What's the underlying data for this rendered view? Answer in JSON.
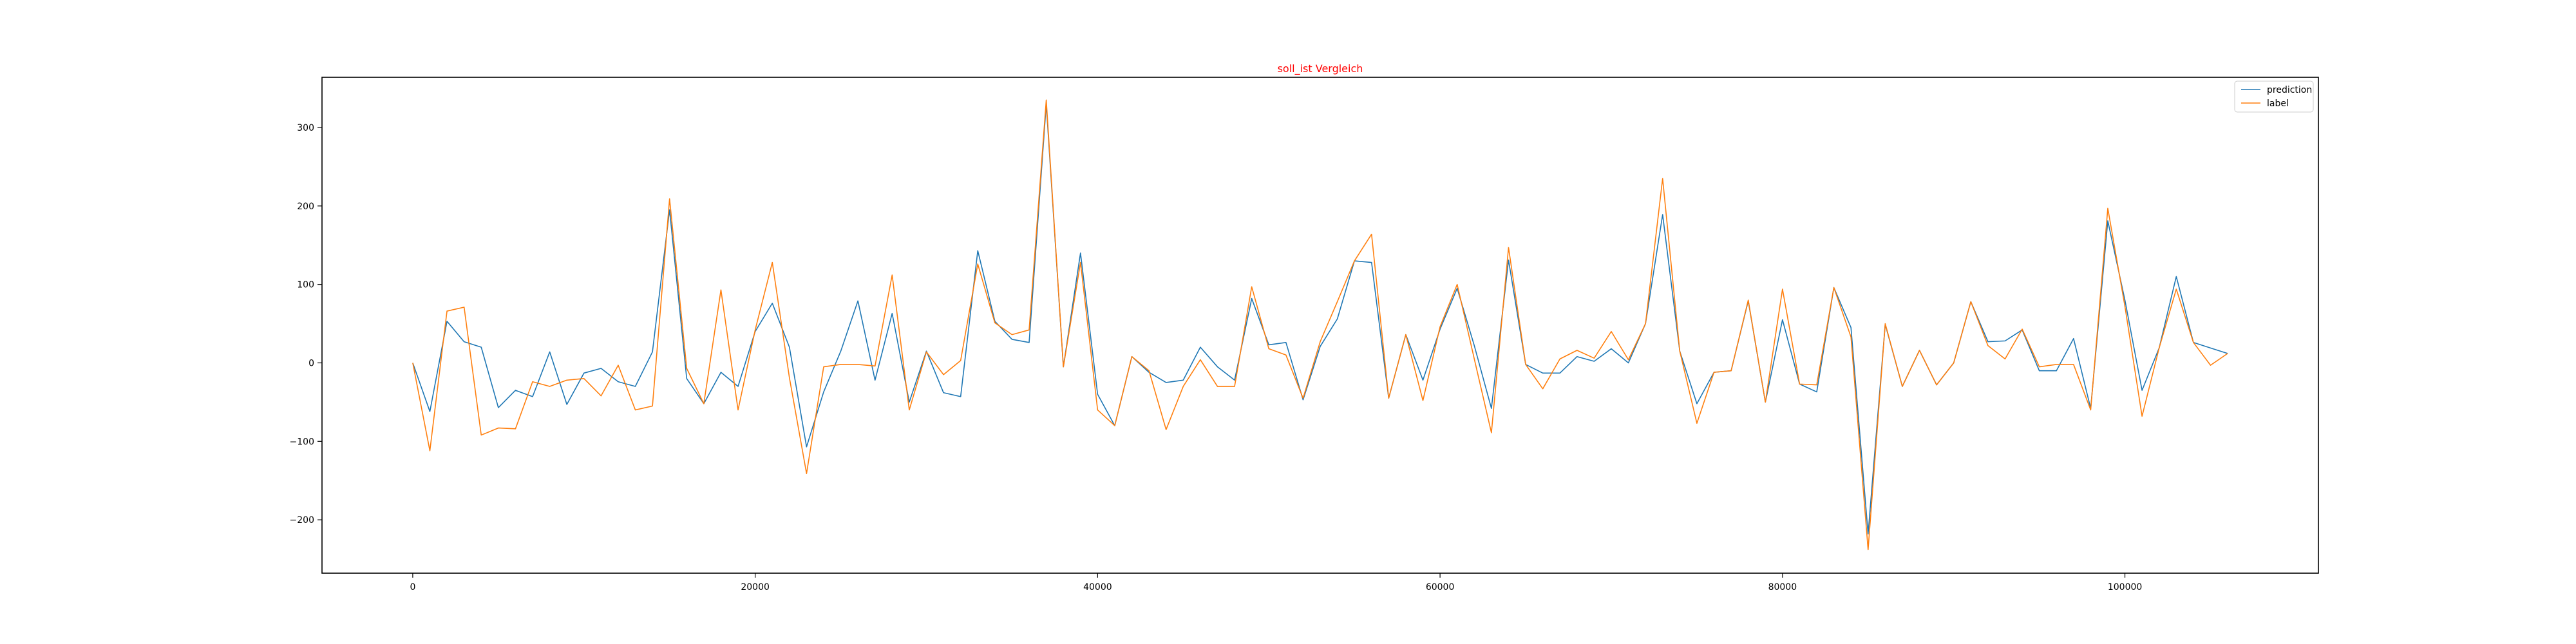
{
  "chart_data": {
    "type": "line",
    "title": "soll_ist Vergleich",
    "title_color": "#ff0000",
    "xlabel": "",
    "ylabel": "",
    "xlim": [
      -5300,
      111300
    ],
    "ylim": [
      -268,
      364
    ],
    "x_ticks": [
      0,
      20000,
      40000,
      60000,
      80000,
      100000
    ],
    "x_tick_labels": [
      "0",
      "20000",
      "40000",
      "60000",
      "80000",
      "100000"
    ],
    "y_ticks": [
      -200,
      -100,
      0,
      100,
      200,
      300
    ],
    "y_tick_labels": [
      "−200",
      "−100",
      "0",
      "100",
      "200",
      "300"
    ],
    "grid": false,
    "legend_position": "top-right",
    "x": [
      0,
      1000,
      2000,
      3000,
      4000,
      5000,
      6000,
      7000,
      8000,
      9000,
      10000,
      11000,
      12000,
      13000,
      14000,
      15000,
      16000,
      17000,
      18000,
      19000,
      20000,
      21000,
      22000,
      23000,
      24000,
      25000,
      26000,
      27000,
      28000,
      29000,
      30000,
      31000,
      32000,
      33000,
      34000,
      35000,
      36000,
      37000,
      38000,
      39000,
      40000,
      41000,
      42000,
      43000,
      44000,
      45000,
      46000,
      47000,
      48000,
      49000,
      50000,
      51000,
      52000,
      53000,
      54000,
      55000,
      56000,
      57000,
      58000,
      59000,
      60000,
      61000,
      62000,
      63000,
      64000,
      65000,
      66000,
      67000,
      68000,
      69000,
      70000,
      71000,
      72000,
      73000,
      74000,
      75000,
      76000,
      77000,
      78000,
      79000,
      80000,
      81000,
      82000,
      83000,
      84000,
      85000,
      86000,
      87000,
      88000,
      89000,
      90000,
      91000,
      92000,
      93000,
      94000,
      95000,
      96000,
      97000,
      98000,
      99000,
      100000,
      101000,
      102000,
      103000,
      104000,
      105000,
      106000
    ],
    "series": [
      {
        "name": "prediction",
        "color": "#1f77b4",
        "values": [
          0,
          -62,
          53,
          27,
          20,
          -57,
          -35,
          -43,
          14,
          -53,
          -13,
          -7,
          -24,
          -30,
          14,
          195,
          -20,
          -52,
          -12,
          -30,
          40,
          76,
          20,
          -107,
          -37,
          15,
          79,
          -22,
          63,
          -50,
          15,
          -38,
          -43,
          143,
          53,
          30,
          26,
          330,
          -5,
          140,
          -40,
          -80,
          8,
          -12,
          -25,
          -22,
          20,
          -5,
          -22,
          82,
          23,
          26,
          -47,
          21,
          56,
          130,
          128,
          -45,
          36,
          -22,
          43,
          95,
          22,
          -58,
          131,
          -2,
          -13,
          -13,
          8,
          2,
          18,
          0,
          50,
          189,
          15,
          -52,
          -12,
          -10,
          79,
          -50,
          55,
          -27,
          -37,
          96,
          45,
          -218,
          49,
          -30,
          16,
          -28,
          0,
          78,
          27,
          28,
          42,
          -10,
          -10,
          31,
          -58,
          181,
          80,
          -35,
          19,
          110,
          26,
          19,
          12
        ]
      },
      {
        "name": "label",
        "color": "#ff7f0e",
        "values": [
          0,
          -112,
          66,
          71,
          -92,
          -83,
          -84,
          -24,
          -30,
          -22,
          -20,
          -42,
          -3,
          -60,
          -55,
          209,
          -7,
          -52,
          93,
          -60,
          42,
          128,
          -19,
          -141,
          -5,
          -2,
          -2,
          -4,
          112,
          -60,
          14,
          -15,
          3,
          126,
          51,
          36,
          42,
          335,
          -5,
          128,
          -60,
          -80,
          8,
          -10,
          -85,
          -30,
          4,
          -30,
          -30,
          97,
          18,
          10,
          -45,
          27,
          78,
          130,
          164,
          -45,
          36,
          -48,
          46,
          100,
          5,
          -89,
          147,
          -2,
          -33,
          5,
          16,
          6,
          40,
          4,
          50,
          235,
          15,
          -77,
          -12,
          -10,
          80,
          -50,
          94,
          -27,
          -28,
          96,
          33,
          -238,
          50,
          -30,
          16,
          -28,
          0,
          78,
          22,
          5,
          43,
          -5,
          -2,
          -2,
          -60,
          197,
          72,
          -68,
          19,
          94,
          26,
          -3,
          12
        ]
      }
    ]
  }
}
